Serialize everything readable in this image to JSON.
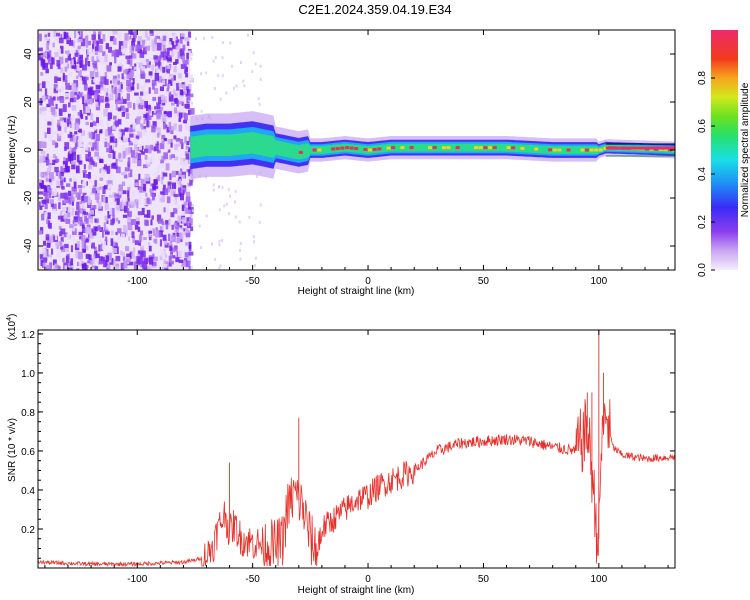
{
  "title": "C2E1.2024.359.04.19.E34",
  "colors": {
    "snr_line": "#e8302a",
    "signal_ribbon": "#2bd98f",
    "signal_core": "#e83050"
  },
  "chart_data": [
    {
      "type": "heatmap",
      "xlabel": "Height of straight line (km)",
      "ylabel": "Frequency (Hz)",
      "xlim": [
        -143,
        133
      ],
      "ylim": [
        -50,
        50
      ],
      "x_ticks": [
        -100,
        -50,
        0,
        50,
        100
      ],
      "y_ticks": [
        -40,
        -20,
        0,
        20,
        40
      ],
      "colorbar": {
        "label": "Normalized spectral amplitude",
        "range": [
          0,
          1
        ],
        "ticks": [
          0.0,
          0.2,
          0.4,
          0.6,
          0.8
        ]
      },
      "noise_region": {
        "x": [
          -143,
          -77
        ],
        "y": [
          -50,
          50
        ]
      },
      "signal_centerline": {
        "x": [
          -77,
          -70,
          -60,
          -50,
          -45,
          -40,
          -35,
          -30,
          -25,
          -20,
          -10,
          0,
          10,
          20,
          40,
          60,
          80,
          95,
          100,
          103,
          133
        ],
        "y": [
          1,
          2,
          2,
          3,
          2,
          1,
          0,
          -1,
          0,
          0,
          1,
          0,
          1,
          1,
          1,
          1,
          0,
          0,
          0,
          1,
          0
        ]
      }
    },
    {
      "type": "line",
      "xlabel": "Height of straight line (km)",
      "ylabel": "SNR (10 * v/v)",
      "y_multiplier": "(x10",
      "y_multiplier_exp": "4",
      "xlim": [
        -143,
        133
      ],
      "ylim": [
        0,
        1.22
      ],
      "x_ticks": [
        -100,
        -50,
        0,
        50,
        100
      ],
      "y_ticks": [
        0.2,
        0.4,
        0.6,
        0.8,
        1.0,
        1.2
      ],
      "series": [
        {
          "x": [
            -143,
            -120,
            -100,
            -80,
            -75,
            -70,
            -67,
            -65,
            -62,
            -60,
            -58,
            -55,
            -50,
            -45,
            -40,
            -37,
            -35,
            -32,
            -30,
            -28,
            -25,
            -22,
            -20,
            -15,
            -10,
            -5,
            0,
            5,
            10,
            20,
            30,
            40,
            50,
            60,
            70,
            80,
            90,
            93,
            95,
            97,
            99,
            100,
            101,
            103,
            106,
            110,
            120,
            133
          ],
          "y": [
            0.03,
            0.02,
            0.02,
            0.03,
            0.04,
            0.06,
            0.12,
            0.2,
            0.28,
            0.18,
            0.22,
            0.15,
            0.13,
            0.12,
            0.11,
            0.14,
            0.3,
            0.38,
            0.35,
            0.3,
            0.15,
            0.08,
            0.2,
            0.25,
            0.3,
            0.35,
            0.37,
            0.42,
            0.45,
            0.5,
            0.6,
            0.64,
            0.65,
            0.66,
            0.65,
            0.62,
            0.6,
            0.66,
            0.72,
            0.5,
            0.2,
            0.15,
            0.6,
            0.8,
            0.62,
            0.58,
            0.56,
            0.57
          ]
        }
      ]
    }
  ]
}
